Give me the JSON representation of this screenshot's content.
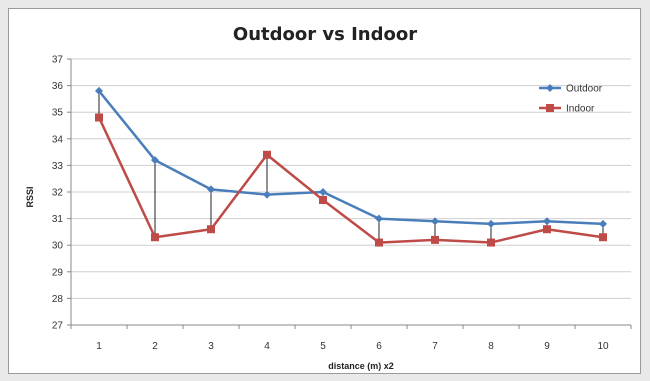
{
  "chart_data": {
    "type": "line",
    "title": "Outdoor vs Indoor",
    "xlabel": "distance (m) x2",
    "ylabel": "RSSI",
    "x": [
      1,
      2,
      3,
      4,
      5,
      6,
      7,
      8,
      9,
      10
    ],
    "ylim": [
      27,
      37
    ],
    "yticks": [
      27,
      28,
      29,
      30,
      31,
      32,
      33,
      34,
      35,
      36,
      37
    ],
    "grid": true,
    "legend_position": "top-right",
    "drop_lines": true,
    "series": [
      {
        "name": "Outdoor",
        "color": "#4a7ebb",
        "marker": "diamond",
        "values": [
          35.8,
          33.2,
          32.1,
          31.9,
          32.0,
          31.0,
          30.9,
          30.8,
          30.9,
          30.8
        ]
      },
      {
        "name": "Indoor",
        "color": "#be4b48",
        "marker": "square",
        "values": [
          34.8,
          30.3,
          30.6,
          33.4,
          31.7,
          30.1,
          30.2,
          30.1,
          30.6,
          30.3
        ]
      }
    ]
  }
}
